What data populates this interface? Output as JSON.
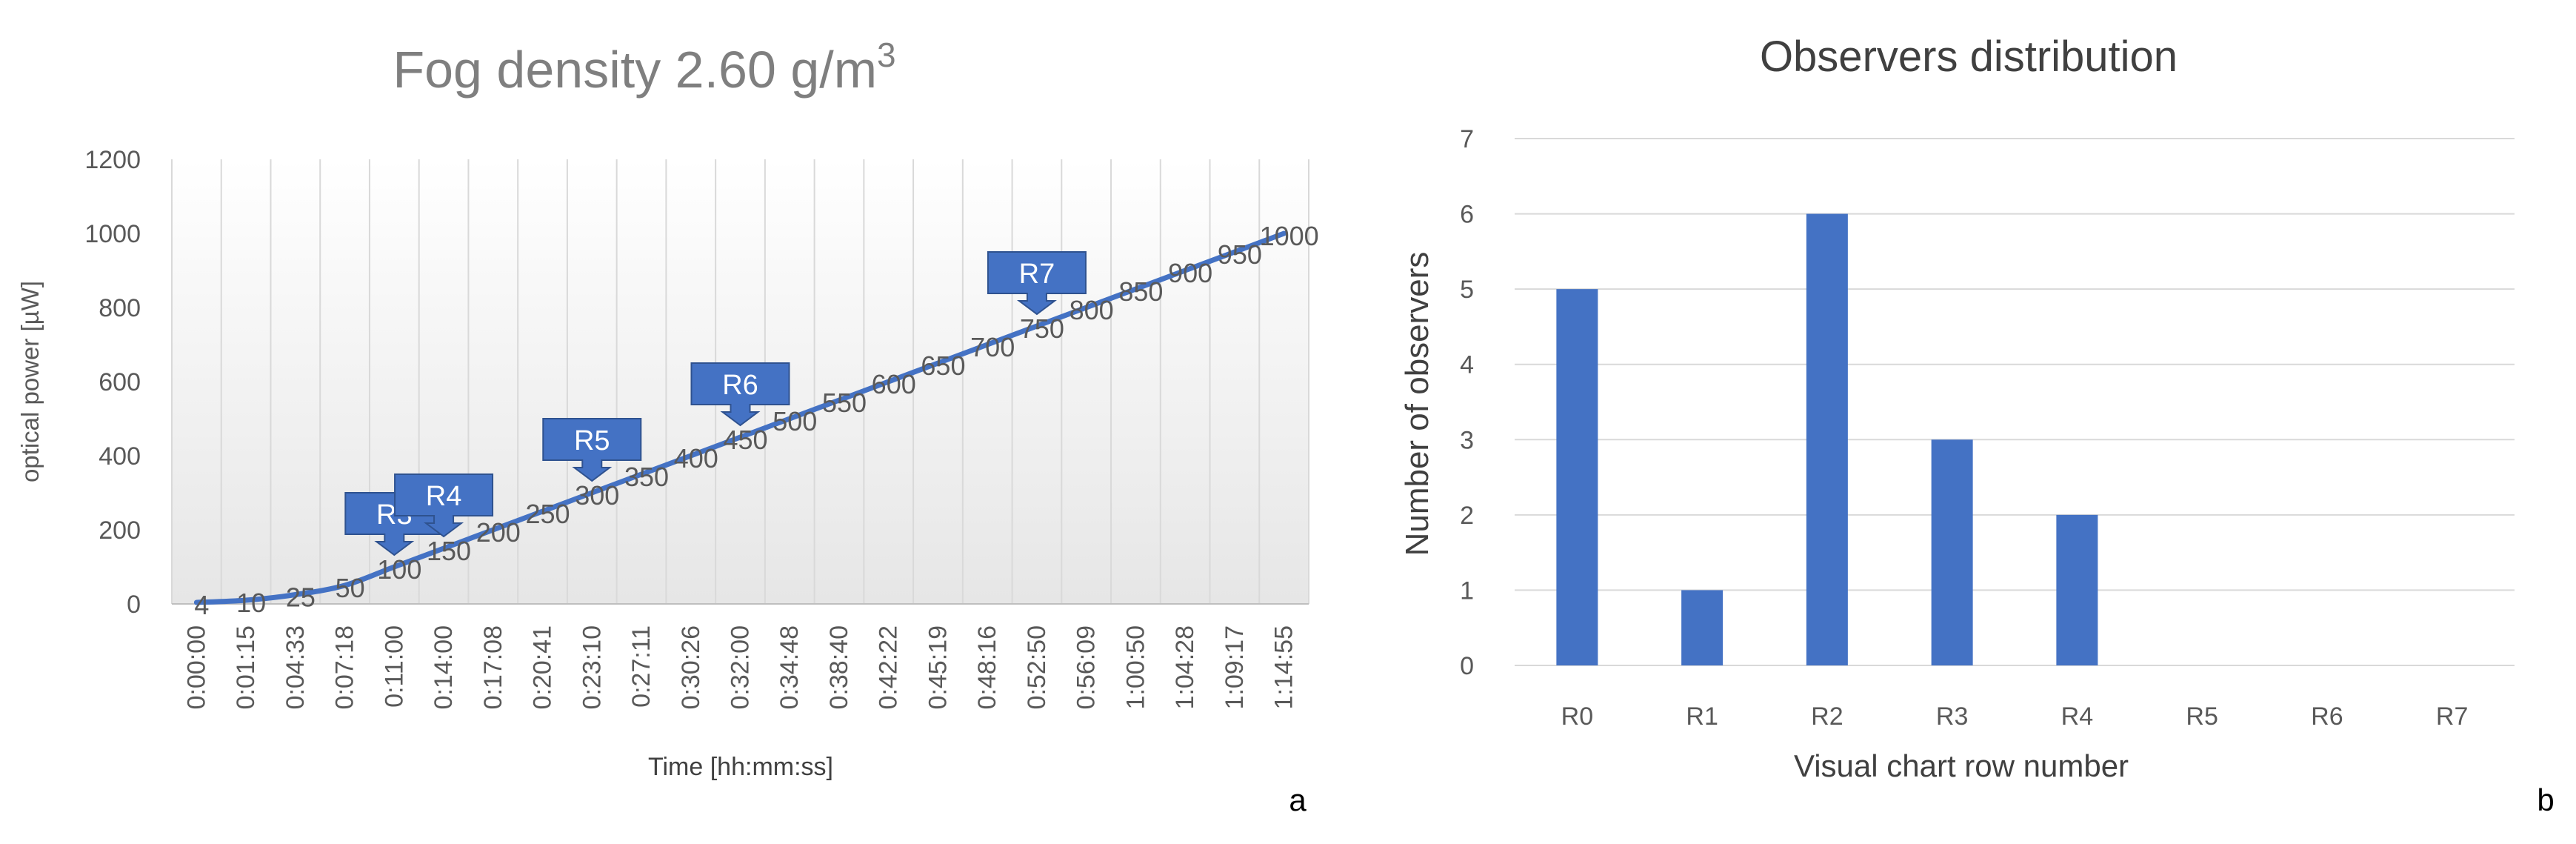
{
  "chart_data": [
    {
      "type": "line",
      "title_main": "Fog density 2.60 g/m",
      "title_sup": "3",
      "xlabel": "Time [hh:mm:ss]",
      "ylabel": "optical power [µW]",
      "ylim": [
        0,
        1200
      ],
      "yticks": [
        "0",
        "200",
        "400",
        "600",
        "800",
        "1000",
        "1200"
      ],
      "categories": [
        "0:00:00",
        "0:01:15",
        "0:04:33",
        "0:07:18",
        "0:11:00",
        "0:14:00",
        "0:17:08",
        "0:20:41",
        "0:23:10",
        "0:27:11",
        "0:30:26",
        "0:32:00",
        "0:34:48",
        "0:38:40",
        "0:42:22",
        "0:45:19",
        "0:48:16",
        "0:52:50",
        "0:56:09",
        "1:00:50",
        "1:04:28",
        "1:09:17",
        "1:14:55"
      ],
      "values": [
        4,
        10,
        25,
        50,
        100,
        150,
        200,
        250,
        300,
        350,
        400,
        450,
        500,
        550,
        600,
        650,
        700,
        750,
        800,
        850,
        900,
        950,
        1000
      ],
      "data_labels": [
        "4",
        "10",
        "25",
        "50",
        "100",
        "150",
        "200",
        "250",
        "300",
        "350",
        "400",
        "450",
        "500",
        "550",
        "600",
        "650",
        "700",
        "750",
        "800",
        "850",
        "900",
        "950",
        "1000"
      ],
      "annotations": [
        {
          "label": "R3",
          "category": "0:11:00",
          "value": 100
        },
        {
          "label": "R4",
          "category": "0:14:00",
          "value": 150
        },
        {
          "label": "R5",
          "category": "0:23:10",
          "value": 300
        },
        {
          "label": "R6",
          "category": "0:32:00",
          "value": 450
        },
        {
          "label": "R7",
          "category": "0:52:50",
          "value": 750
        }
      ],
      "grid": "vertical",
      "line_color": "#4472C4",
      "callout_color": "#4472C4",
      "panel_letter": "a"
    },
    {
      "type": "bar",
      "title": "Observers distribution",
      "xlabel": "Visual chart row number",
      "ylabel": "Number of observers",
      "ylim": [
        0,
        7
      ],
      "yticks": [
        "0",
        "1",
        "2",
        "3",
        "4",
        "5",
        "6",
        "7"
      ],
      "categories": [
        "R0",
        "R1",
        "R2",
        "R3",
        "R4",
        "R5",
        "R6",
        "R7"
      ],
      "values": [
        5,
        1,
        6,
        3,
        2,
        0,
        0,
        0
      ],
      "grid": "horizontal",
      "bar_color": "#4472C4",
      "panel_letter": "b"
    }
  ]
}
